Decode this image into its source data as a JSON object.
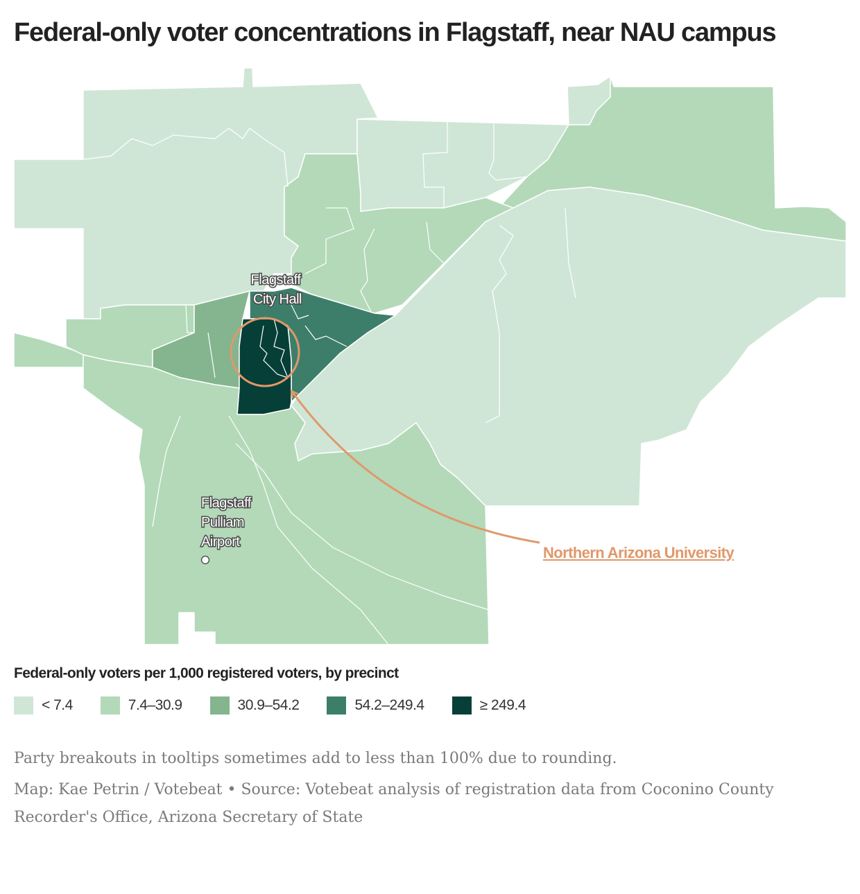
{
  "title": "Federal-only voter concentrations in Flagstaff, near NAU campus",
  "map": {
    "labels": {
      "city_hall": [
        "Flagstaff",
        "City Hall"
      ],
      "airport": [
        "Flagstaff",
        "Pulliam",
        "Airport"
      ]
    },
    "callout": "Northern Arizona University",
    "colors": {
      "class1": "#cfe6d6",
      "class2": "#b3d9b9",
      "class3": "#84b58f",
      "class4": "#3d7e6a",
      "class5": "#063f37",
      "callout": "#e0986a"
    }
  },
  "legend": {
    "title": "Federal-only voters per 1,000 registered voters, by precinct",
    "items": [
      {
        "label": "< 7.4",
        "color": "#cfe6d6"
      },
      {
        "label": "7.4–30.9",
        "color": "#b3d9b9"
      },
      {
        "label": "30.9–54.2",
        "color": "#84b58f"
      },
      {
        "label": "54.2–249.4",
        "color": "#3d7e6a"
      },
      {
        "label": "≥ 249.4",
        "color": "#063f37"
      }
    ]
  },
  "notes": {
    "rounding": "Party breakouts in tooltips sometimes add to less than 100% due to rounding.",
    "credit": "Map: Kae Petrin / Votebeat • Source: Votebeat analysis of registration data from Coconino County Recorder's Office, Arizona Secretary of State"
  }
}
